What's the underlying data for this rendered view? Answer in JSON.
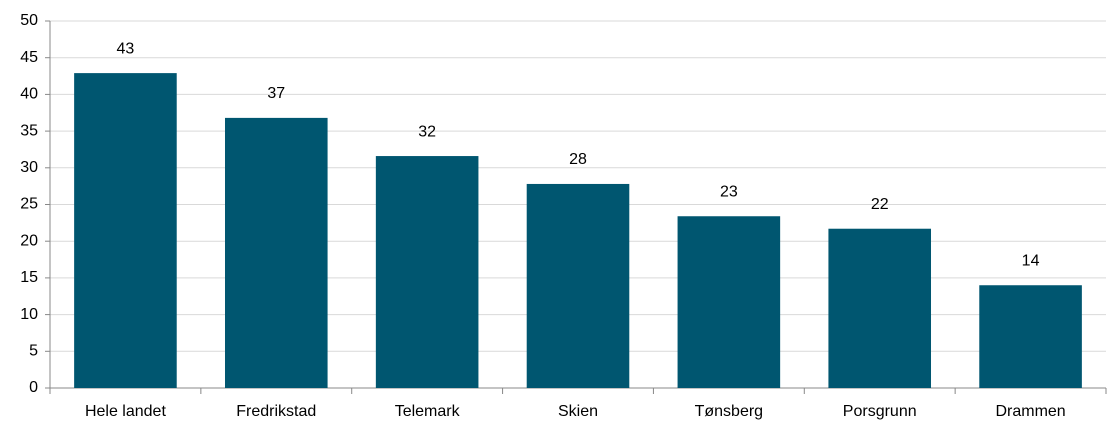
{
  "chart_data": {
    "type": "bar",
    "categories": [
      "Hele landet",
      "Fredrikstad",
      "Telemark",
      "Skien",
      "Tønsberg",
      "Porsgrunn",
      "Drammen"
    ],
    "values": [
      42.9,
      36.8,
      31.6,
      27.8,
      23.4,
      21.7,
      14.0
    ],
    "value_labels": [
      "43",
      "37",
      "32",
      "28",
      "23",
      "22",
      "14"
    ],
    "color": "#005670",
    "ylim": [
      0,
      50
    ],
    "yticks": [
      0,
      5,
      10,
      15,
      20,
      25,
      30,
      35,
      40,
      45,
      50
    ],
    "grid": true
  }
}
